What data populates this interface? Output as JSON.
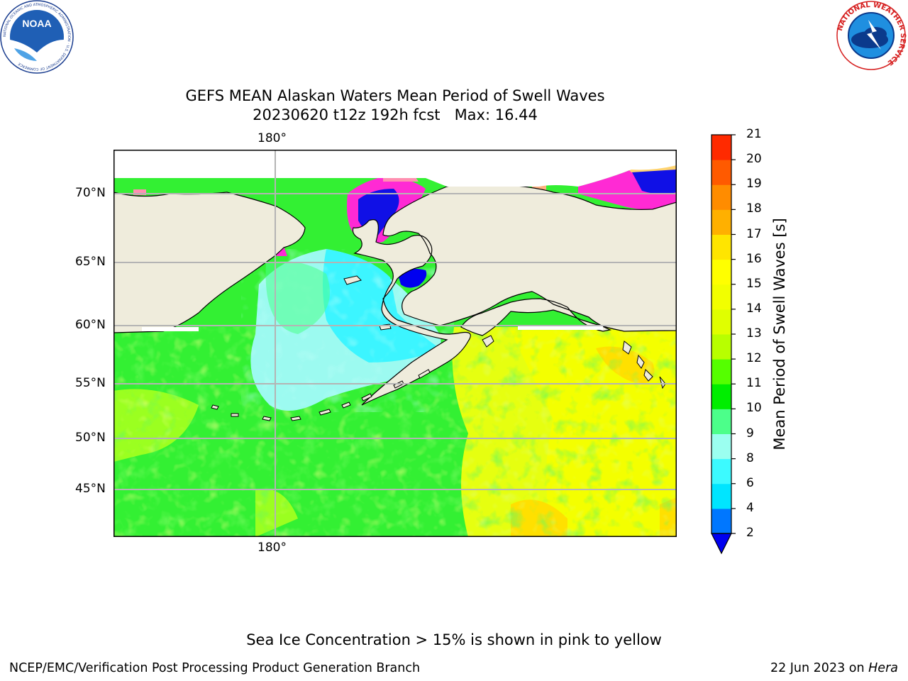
{
  "header": {
    "title_line1": "GEFS MEAN Alaskan Waters Mean Period of Swell Waves",
    "title_line2": "20230620 t12z 192h fcst   Max: 16.44"
  },
  "logos": {
    "noaa": {
      "text": "NOAA",
      "ring_text": "NATIONAL OCEANIC AND ATMOSPHERIC ADMINISTRATION · U.S. DEPARTMENT OF COMMERCE"
    },
    "nws": {
      "ring_text": "NATIONAL WEATHER SERVICE"
    }
  },
  "map": {
    "longitude_labels": {
      "top": "180°",
      "bottom": "180°"
    },
    "latitude_labels": [
      "70°N",
      "65°N",
      "60°N",
      "55°N",
      "50°N",
      "45°N"
    ],
    "colors": {
      "land": "#efecdc",
      "coast": "#000000",
      "grid": "#b4b4b4",
      "ice": [
        "#ff2ad4",
        "#ff8fb0",
        "#ffd470"
      ]
    }
  },
  "colorbar": {
    "label": "Mean Period of Swell Waves [s]",
    "ticks": [
      "21",
      "20",
      "19",
      "18",
      "17",
      "16",
      "15",
      "14",
      "13",
      "12",
      "11",
      "10",
      "9",
      "8",
      "6",
      "4",
      "2"
    ],
    "colors_bottom_to_top": [
      "#0077ff",
      "#00e5ff",
      "#3cfaff",
      "#9bfff0",
      "#4cff8a",
      "#00ee00",
      "#55ff00",
      "#b8ff00",
      "#e0ff00",
      "#f2ff00",
      "#ffff00",
      "#ffe500",
      "#ffb000",
      "#ff8c00",
      "#ff5a00",
      "#ff2a00"
    ],
    "under_color": "#0000f0"
  },
  "footer": {
    "note": "Sea Ice Concentration > 15% is shown in pink to yellow",
    "credit": "NCEP/EMC/Verification Post Processing Product Generation Branch",
    "date": "22 Jun 2023 on ",
    "machine": "Hera"
  }
}
